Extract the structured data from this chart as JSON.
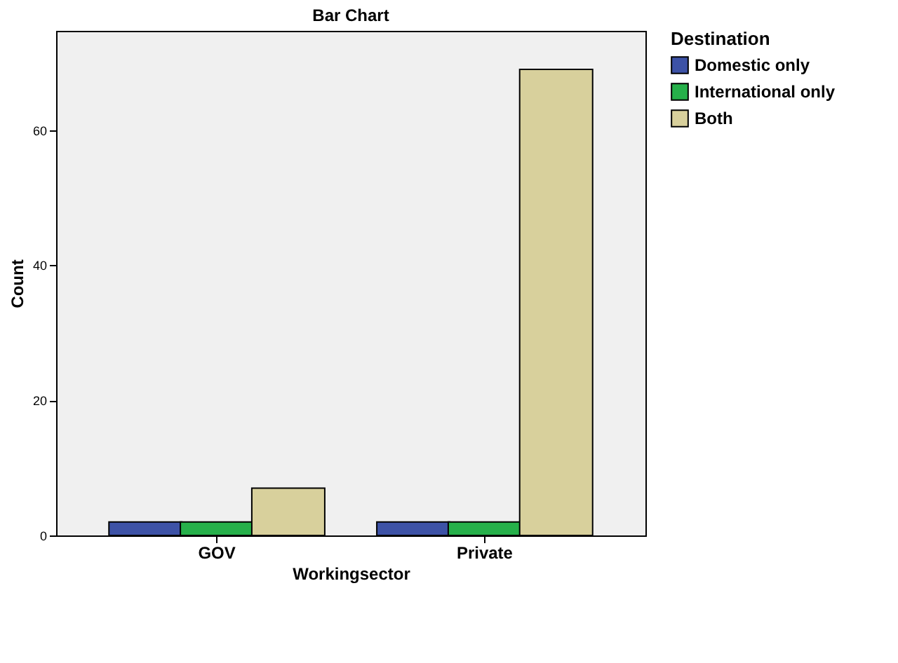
{
  "chart_data": {
    "type": "bar",
    "title": "Bar Chart",
    "xlabel": "Workingsector",
    "ylabel": "Count",
    "legend_title": "Destination",
    "categories": [
      "GOV",
      "Private"
    ],
    "series": [
      {
        "name": "Domestic only",
        "color": "#3d52a6",
        "values": [
          2,
          2
        ]
      },
      {
        "name": "International only",
        "color": "#26b04a",
        "values": [
          2,
          2
        ]
      },
      {
        "name": "Both",
        "color": "#d8d09c",
        "values": [
          7,
          69
        ]
      }
    ],
    "ylim": [
      0,
      74.7
    ],
    "yticks": [
      0,
      20,
      40,
      60
    ],
    "grid": false,
    "legend": "right"
  }
}
